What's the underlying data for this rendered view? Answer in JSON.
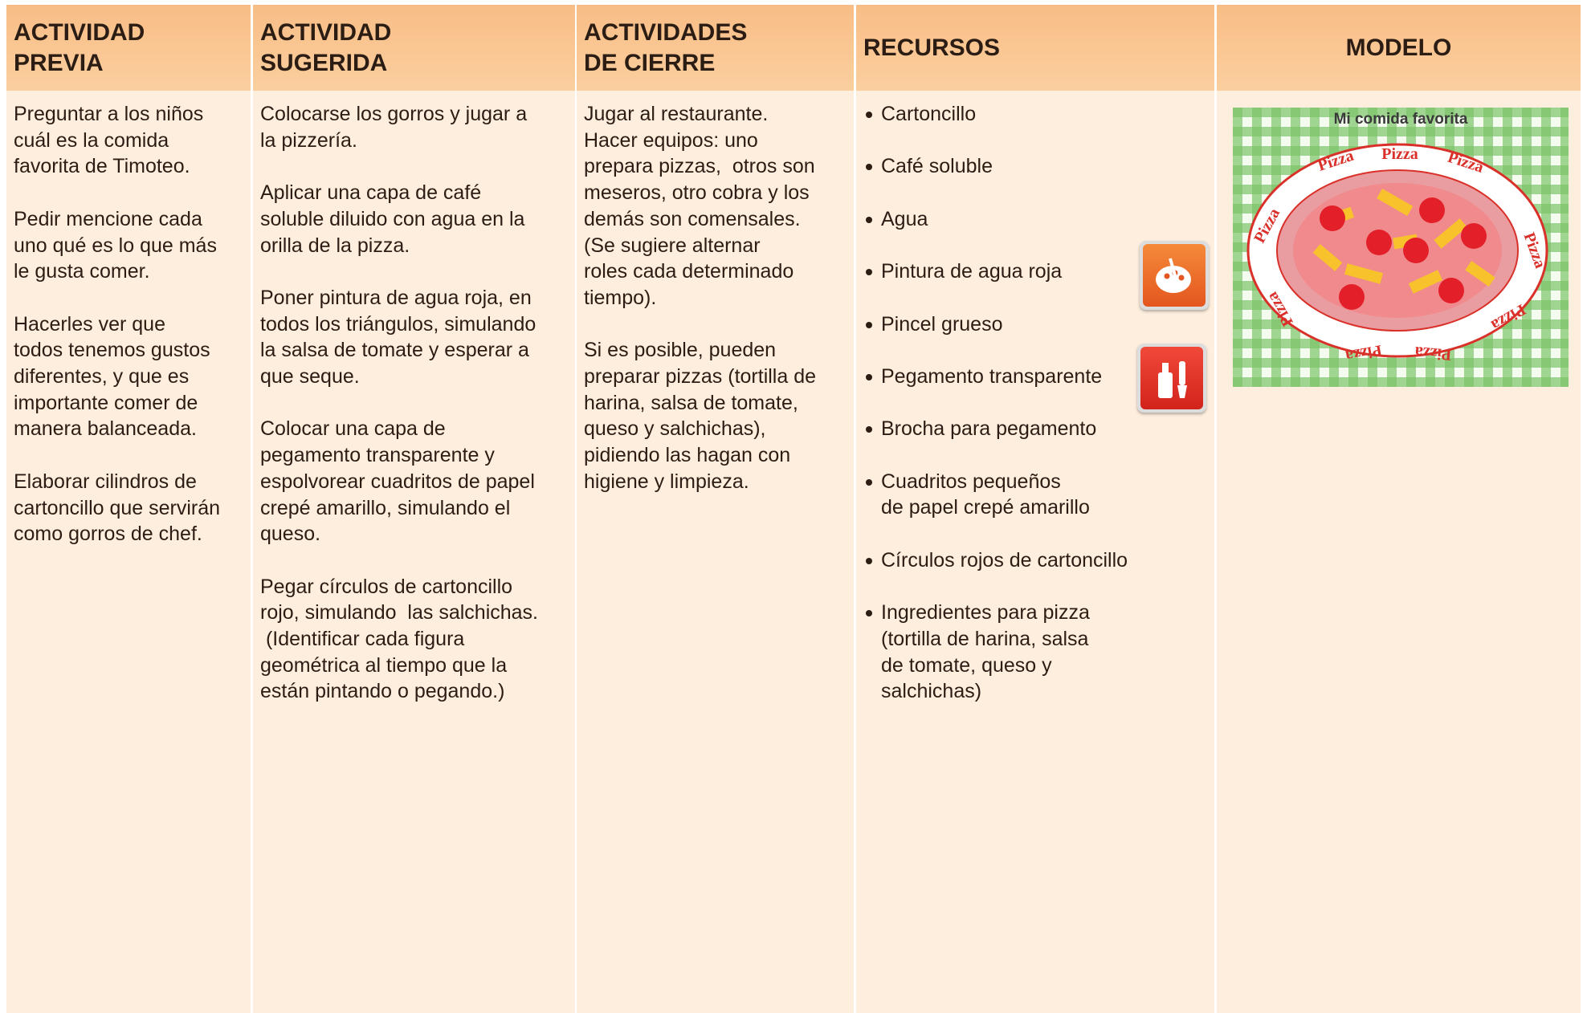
{
  "headers": [
    [
      "ACTIVIDAD",
      "PREVIA"
    ],
    [
      "ACTIVIDAD",
      "SUGERIDA"
    ],
    [
      "ACTIVIDADES",
      "DE CIERRE"
    ],
    [
      "RECURSOS"
    ],
    [
      "MODELO"
    ]
  ],
  "actividad_previa": [
    [
      "Preguntar a los niños",
      "cuál es la comida",
      "favorita de Timoteo."
    ],
    [
      "Pedir mencione cada",
      "uno qué es lo que más",
      "le gusta comer."
    ],
    [
      "Hacerles ver que",
      "todos tenemos gustos",
      "diferentes, y que es",
      "importante comer de",
      "manera balanceada."
    ],
    [
      "Elaborar cilindros de",
      "cartoncillo que servirán",
      "como gorros de chef."
    ]
  ],
  "actividad_sugerida": [
    [
      "Colocarse los gorros y jugar a",
      "la pizzería."
    ],
    [
      "Aplicar una capa de café",
      "soluble diluido con agua en la",
      "orilla de la pizza."
    ],
    [
      "Poner pintura de agua roja, en",
      "todos los triángulos, simulando",
      "la salsa de tomate y esperar a",
      "que seque."
    ],
    [
      "Colocar una capa de",
      "pegamento transparente y",
      "espolvorear cuadritos de papel",
      "crepé amarillo, simulando el",
      "queso."
    ],
    [
      "Pegar círculos de cartoncillo",
      "rojo, simulando  las salchichas.",
      " (Identificar cada figura",
      "geométrica al tiempo que la",
      "están pintando o pegando.)"
    ]
  ],
  "actividades_de_cierre": [
    [
      "Jugar al restaurante.",
      "Hacer equipos: uno",
      "prepara pizzas,  otros son",
      "meseros, otro cobra y los",
      "demás son comensales.",
      "(Se sugiere alternar",
      "roles cada determinado",
      "tiempo)."
    ],
    [
      "Si es posible, pueden",
      "preparar pizzas (tortilla de",
      "harina, salsa de tomate,",
      "queso y salchichas),",
      "pidiendo las hagan con",
      "higiene y limpieza."
    ]
  ],
  "recursos": [
    [
      "Cartoncillo"
    ],
    [
      "Café soluble"
    ],
    [
      "Agua"
    ],
    [
      "Pintura de agua roja"
    ],
    [
      "Pincel grueso"
    ],
    [
      "Pegamento transparente"
    ],
    [
      "Brocha para pegamento"
    ],
    [
      "Cuadritos pequeños",
      "de papel crepé amarillo"
    ],
    [
      "Círculos rojos de cartoncillo"
    ],
    [
      "Ingredientes para pizza",
      "(tortilla de harina, salsa",
      "de tomate, queso y",
      "salchichas)"
    ]
  ],
  "modelo": {
    "image_title": "Mi comida favorita",
    "plate_label": "Pizza"
  }
}
